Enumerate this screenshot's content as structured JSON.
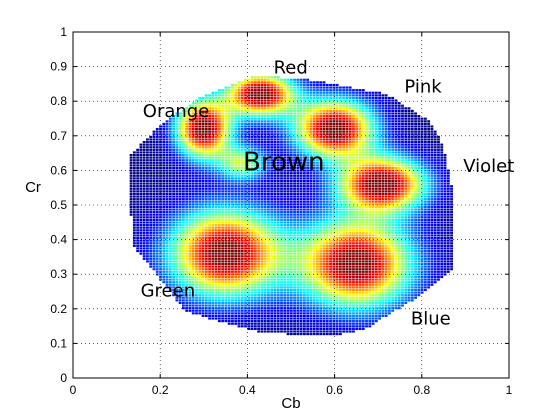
{
  "chart_data": {
    "type": "heatmap",
    "xlabel": "Cb",
    "ylabel": "Cr",
    "xlim": [
      0,
      1
    ],
    "ylim": [
      0,
      1
    ],
    "xticks": [
      "0",
      "0.2",
      "0.4",
      "0.6",
      "0.8",
      "1"
    ],
    "yticks": [
      "0",
      "0.1",
      "0.2",
      "0.3",
      "0.4",
      "0.5",
      "0.6",
      "0.7",
      "0.8",
      "0.9",
      "1"
    ],
    "grid": true,
    "colormap": "jet",
    "support_hull": [
      [
        0.42,
        0.875
      ],
      [
        0.55,
        0.86
      ],
      [
        0.72,
        0.82
      ],
      [
        0.82,
        0.74
      ],
      [
        0.85,
        0.67
      ],
      [
        0.87,
        0.55
      ],
      [
        0.875,
        0.32
      ],
      [
        0.8,
        0.24
      ],
      [
        0.67,
        0.14
      ],
      [
        0.59,
        0.12
      ],
      [
        0.43,
        0.13
      ],
      [
        0.26,
        0.19
      ],
      [
        0.14,
        0.38
      ],
      [
        0.13,
        0.52
      ],
      [
        0.13,
        0.64
      ],
      [
        0.2,
        0.73
      ],
      [
        0.29,
        0.81
      ]
    ],
    "clusters": [
      {
        "label": "Red",
        "cb": 0.43,
        "cr": 0.82,
        "sigma_cb": 0.055,
        "sigma_cr": 0.045,
        "weight": 1.0
      },
      {
        "label": "Orange",
        "cb": 0.3,
        "cr": 0.72,
        "sigma_cb": 0.045,
        "sigma_cr": 0.06,
        "weight": 1.0
      },
      {
        "label": "Pink",
        "cb": 0.6,
        "cr": 0.72,
        "sigma_cb": 0.065,
        "sigma_cr": 0.06,
        "weight": 1.0
      },
      {
        "label": "Brown",
        "cb": 0.39,
        "cr": 0.62,
        "sigma_cb": 0.04,
        "sigma_cr": 0.035,
        "weight": 0.5
      },
      {
        "label": "Violet",
        "cb": 0.71,
        "cr": 0.56,
        "sigma_cb": 0.07,
        "sigma_cr": 0.055,
        "weight": 1.0
      },
      {
        "label": "Green",
        "cb": 0.35,
        "cr": 0.36,
        "sigma_cb": 0.09,
        "sigma_cr": 0.09,
        "weight": 1.0
      },
      {
        "label": "Blue",
        "cb": 0.65,
        "cr": 0.33,
        "sigma_cb": 0.09,
        "sigma_cr": 0.09,
        "weight": 1.0
      }
    ],
    "labels": [
      {
        "text": "Red",
        "x": 0.46,
        "y": 0.88,
        "size": 18
      },
      {
        "text": "Orange",
        "x": 0.16,
        "y": 0.755,
        "size": 18
      },
      {
        "text": "Pink",
        "x": 0.76,
        "y": 0.825,
        "size": 18
      },
      {
        "text": "Brown",
        "x": 0.39,
        "y": 0.6,
        "size": 26
      },
      {
        "text": "Violet",
        "x": 0.895,
        "y": 0.595,
        "size": 18
      },
      {
        "text": "Green",
        "x": 0.155,
        "y": 0.235,
        "size": 18
      },
      {
        "text": "Blue",
        "x": 0.775,
        "y": 0.155,
        "size": 18
      }
    ]
  }
}
